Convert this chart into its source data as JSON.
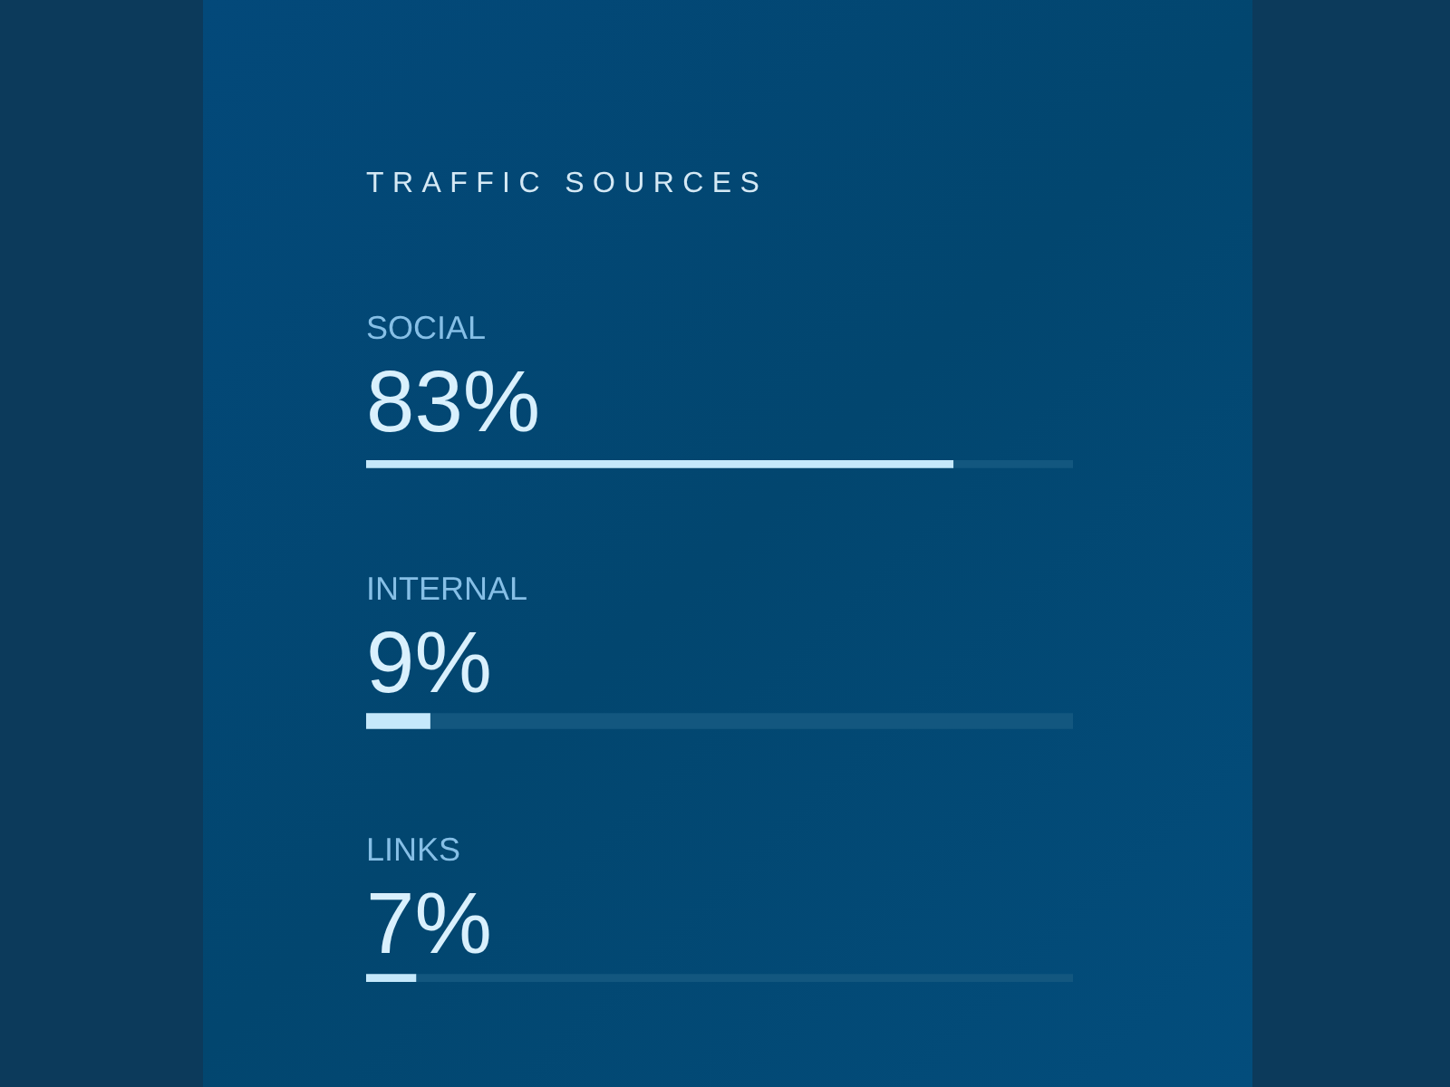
{
  "chart_data": {
    "type": "bar",
    "orientation": "horizontal",
    "stacked": true,
    "title": "TRAFFIC SOURCES",
    "categories": [
      "SOCIAL",
      "INTERNAL",
      "LINKS"
    ],
    "series": [
      {
        "color": "#c5e8fb",
        "values": [
          83,
          9,
          7
        ],
        "value_labels": [
          "83%",
          "9%",
          "7%"
        ]
      },
      {
        "color": "#13577f",
        "values": [
          17,
          91,
          93
        ]
      }
    ],
    "xlim": [
      0,
      100
    ],
    "tick_labels": false
  }
}
